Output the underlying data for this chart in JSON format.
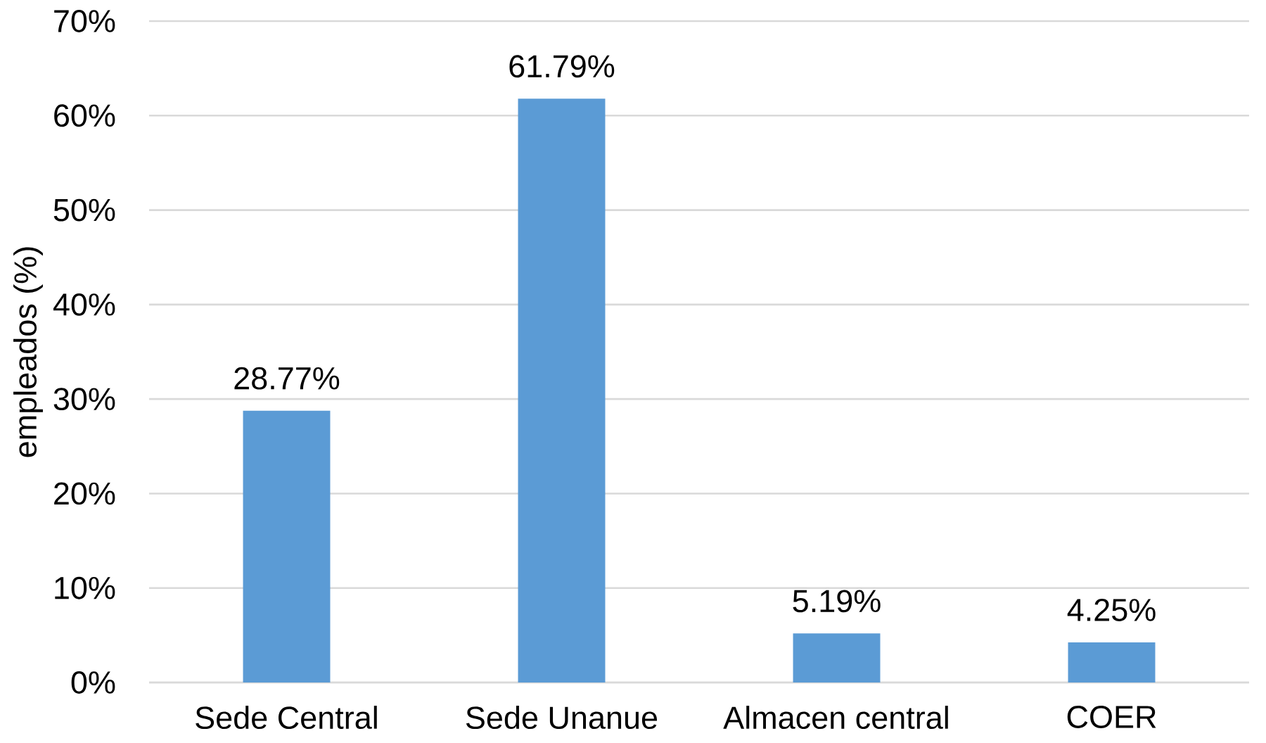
{
  "chart_data": {
    "type": "bar",
    "ylabel": "empleados (%)",
    "categories": [
      "Sede Central",
      "Sede Unanue",
      "Almacen central",
      "COER"
    ],
    "values": [
      28.77,
      61.79,
      5.19,
      4.25
    ],
    "color": "#5b9bd5",
    "value_labels": [
      "28.77%",
      "61.79%",
      "5.19%",
      "4.25%"
    ],
    "ylim": [
      0,
      70
    ],
    "yticks": [
      {
        "value": 0,
        "label": "0%"
      },
      {
        "value": 10,
        "label": "10%"
      },
      {
        "value": 20,
        "label": "20%"
      },
      {
        "value": 30,
        "label": "30%"
      },
      {
        "value": 40,
        "label": "40%"
      },
      {
        "value": 50,
        "label": "50%"
      },
      {
        "value": 60,
        "label": "60%"
      },
      {
        "value": 70,
        "label": "70%"
      }
    ],
    "grid": "y"
  }
}
